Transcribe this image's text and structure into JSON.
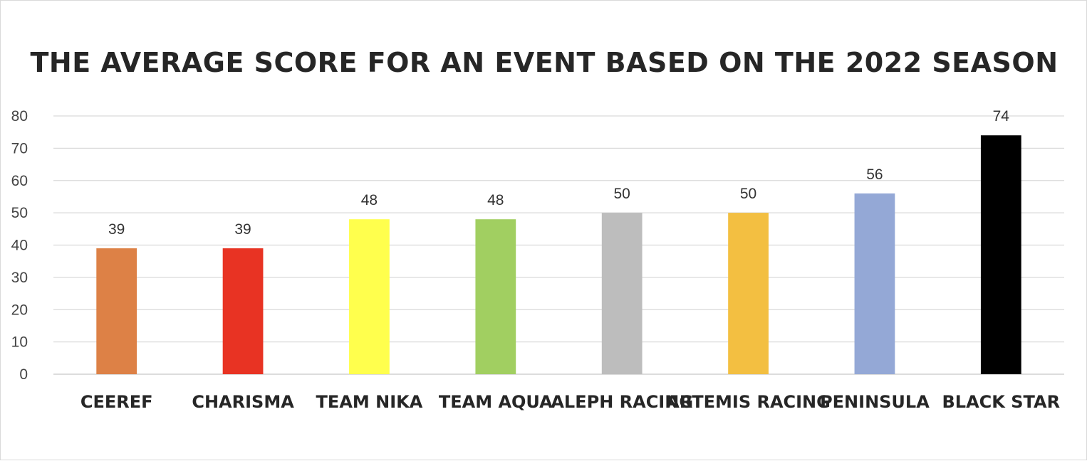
{
  "chart_data": {
    "type": "bar",
    "title": "THE AVERAGE SCORE FOR AN EVENT BASED ON THE 2022 SEASON",
    "xlabel": "",
    "ylabel": "",
    "ylim": [
      0,
      80
    ],
    "yticks": [
      "0",
      "10",
      "20",
      "30",
      "40",
      "50",
      "60",
      "70",
      "80"
    ],
    "grid": true,
    "legend": "none",
    "categories": [
      "CEEREF",
      "CHARISMA",
      "TEAM NIKA",
      "TEAM AQUA",
      "ALEPH RACING",
      "ARTEMIS RACING",
      "PENINSULA",
      "BLACK STAR"
    ],
    "values": [
      39,
      39,
      48,
      48,
      50,
      50,
      56,
      74
    ],
    "data_labels": [
      "39",
      "39",
      "48",
      "48",
      "50",
      "50",
      "56",
      "74"
    ],
    "colors": [
      "#dd8146",
      "#e83323",
      "#ffff4d",
      "#a1cf61",
      "#bdbdbd",
      "#f3bf41",
      "#94a8d6",
      "#000000"
    ]
  }
}
